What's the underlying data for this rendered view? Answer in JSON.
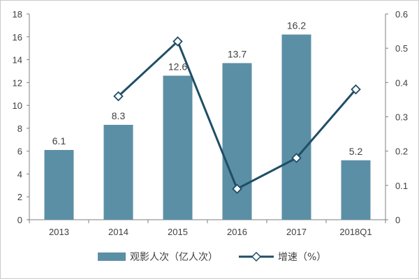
{
  "chart_data": {
    "type": "bar",
    "categories": [
      "2013",
      "2014",
      "2015",
      "2016",
      "2017",
      "2018Q1"
    ],
    "series": [
      {
        "name": "观影人次（亿人次）",
        "type": "bar",
        "axis": "left",
        "color": "#5b8fa6",
        "values": [
          6.1,
          8.3,
          12.6,
          13.7,
          16.2,
          5.2
        ],
        "labels": [
          "6.1",
          "8.3",
          "12.6",
          "13.7",
          "16.2",
          "5.2"
        ]
      },
      {
        "name": "增速（%）",
        "type": "line",
        "axis": "right",
        "color": "#1f4e66",
        "marker": "diamond",
        "values": [
          null,
          0.36,
          0.52,
          0.09,
          0.18,
          0.38
        ]
      }
    ],
    "y_left": {
      "min": 0,
      "max": 18,
      "step": 2,
      "ticks": [
        "0",
        "2",
        "4",
        "6",
        "8",
        "10",
        "12",
        "14",
        "16",
        "18"
      ]
    },
    "y_right": {
      "min": 0,
      "max": 0.6,
      "step": 0.1,
      "ticks": [
        "0",
        "0.1",
        "0.2",
        "0.3",
        "0.4",
        "0.5",
        "0.6"
      ]
    },
    "grid": false,
    "legend_position": "bottom"
  }
}
